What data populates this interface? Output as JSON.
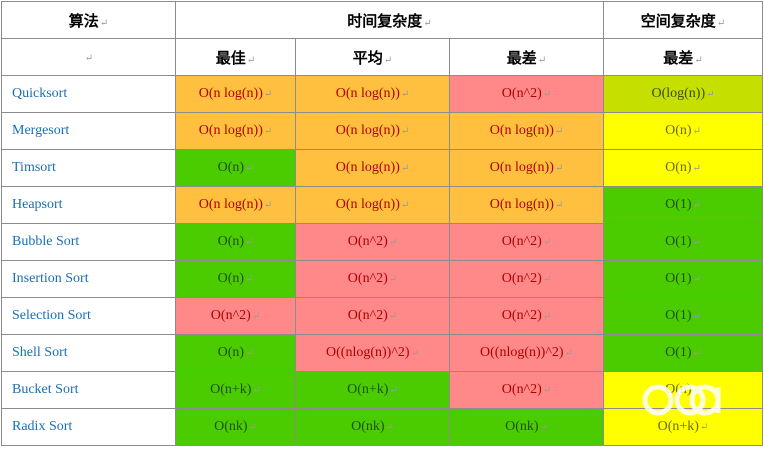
{
  "header": {
    "algorithm": "算法",
    "time_complexity": "时间复杂度",
    "space_complexity": "空间复杂度",
    "best": "最佳",
    "average": "平均",
    "worst": "最差",
    "space_worst": "最差",
    "mark": "↵"
  },
  "rows": [
    {
      "name": "Quicksort",
      "best": "O(n log(n))",
      "avg": "O(n log(n))",
      "worst": "O(n^2)",
      "space": "O(log(n))"
    },
    {
      "name": "Mergesort",
      "best": "O(n log(n))",
      "avg": "O(n log(n))",
      "worst": "O(n log(n))",
      "space": "O(n)"
    },
    {
      "name": "Timsort",
      "best": "O(n)",
      "avg": "O(n log(n))",
      "worst": "O(n log(n))",
      "space": "O(n)"
    },
    {
      "name": "Heapsort",
      "best": "O(n log(n))",
      "avg": "O(n log(n))",
      "worst": "O(n log(n))",
      "space": "O(1)"
    },
    {
      "name": "Bubble Sort",
      "best": "O(n)",
      "avg": "O(n^2)",
      "worst": "O(n^2)",
      "space": "O(1)"
    },
    {
      "name": "Insertion Sort",
      "best": "O(n)",
      "avg": "O(n^2)",
      "worst": "O(n^2)",
      "space": "O(1)"
    },
    {
      "name": "Selection Sort",
      "best": "O(n^2)",
      "avg": "O(n^2)",
      "worst": "O(n^2)",
      "space": "O(1)"
    },
    {
      "name": "Shell Sort",
      "best": "O(n)",
      "avg": "O((nlog(n))^2)",
      "worst": "O((nlog(n))^2)",
      "space": "O(1)"
    },
    {
      "name": "Bucket Sort",
      "best": "O(n+k)",
      "avg": "O(n+k)",
      "worst": "O(n^2)",
      "space": "O(n)"
    },
    {
      "name": "Radix Sort",
      "best": "O(nk)",
      "avg": "O(nk)",
      "worst": "O(nk)",
      "space": "O(n+k)"
    }
  ],
  "colors": {
    "orange": "#ffc040",
    "red": "#ff8888",
    "green": "#4bcc00",
    "yellow": "#ffff00",
    "lime": "#c5e000",
    "name_text": "#1a6eb5"
  }
}
